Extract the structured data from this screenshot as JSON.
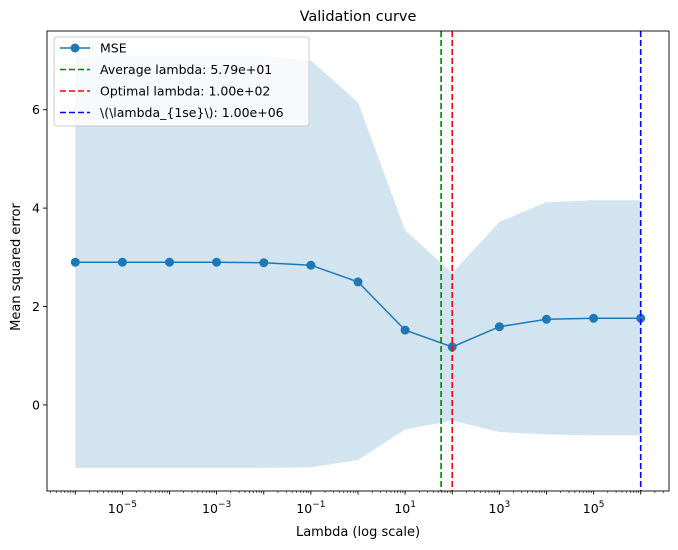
{
  "chart_data": {
    "type": "line",
    "title": "Validation curve",
    "xlabel": "Lambda (log scale)",
    "ylabel": "Mean squared error",
    "xscale": "log",
    "xlim_log10": [
      -6.6,
      6.6
    ],
    "ylim": [
      -1.75,
      7.6
    ],
    "grid": false,
    "legend_position": "top-left",
    "x_log10": [
      -6,
      -5,
      -4,
      -3,
      -2,
      -1,
      0,
      1,
      2,
      3,
      4,
      5,
      6
    ],
    "series": [
      {
        "name": "MSE",
        "color": "#1f77b4",
        "values": [
          2.9,
          2.9,
          2.9,
          2.9,
          2.89,
          2.84,
          2.5,
          1.52,
          1.18,
          1.59,
          1.74,
          1.76,
          1.76
        ]
      }
    ],
    "band": {
      "color": "#1f77b4",
      "opacity": 0.2,
      "upper": [
        7.08,
        7.1,
        7.1,
        7.1,
        7.1,
        7.0,
        6.15,
        3.55,
        2.68,
        3.72,
        4.12,
        4.16,
        4.16
      ],
      "lower": [
        -1.28,
        -1.28,
        -1.28,
        -1.28,
        -1.28,
        -1.27,
        -1.12,
        -0.5,
        -0.32,
        -0.55,
        -0.6,
        -0.62,
        -0.62
      ]
    },
    "vlines": [
      {
        "label": "Average lambda: 5.79e+01",
        "x_log10": 1.763,
        "color": "#008000"
      },
      {
        "label": "Optimal lambda: 1.00e+02",
        "x_log10": 2.0,
        "color": "#ff0000"
      },
      {
        "label": "\\(\\lambda_{1se}\\): 1.00e+06",
        "x_log10": 6.0,
        "color": "#0000ff"
      }
    ],
    "y_ticks": [
      0,
      2,
      4,
      6
    ],
    "x_ticks": [
      {
        "log10": -5,
        "base": "10",
        "exp": "−5"
      },
      {
        "log10": -3,
        "base": "10",
        "exp": "−3"
      },
      {
        "log10": -1,
        "base": "10",
        "exp": "−1"
      },
      {
        "log10": 1,
        "base": "10",
        "exp": "1"
      },
      {
        "log10": 3,
        "base": "10",
        "exp": "3"
      },
      {
        "log10": 5,
        "base": "10",
        "exp": "5"
      }
    ]
  }
}
